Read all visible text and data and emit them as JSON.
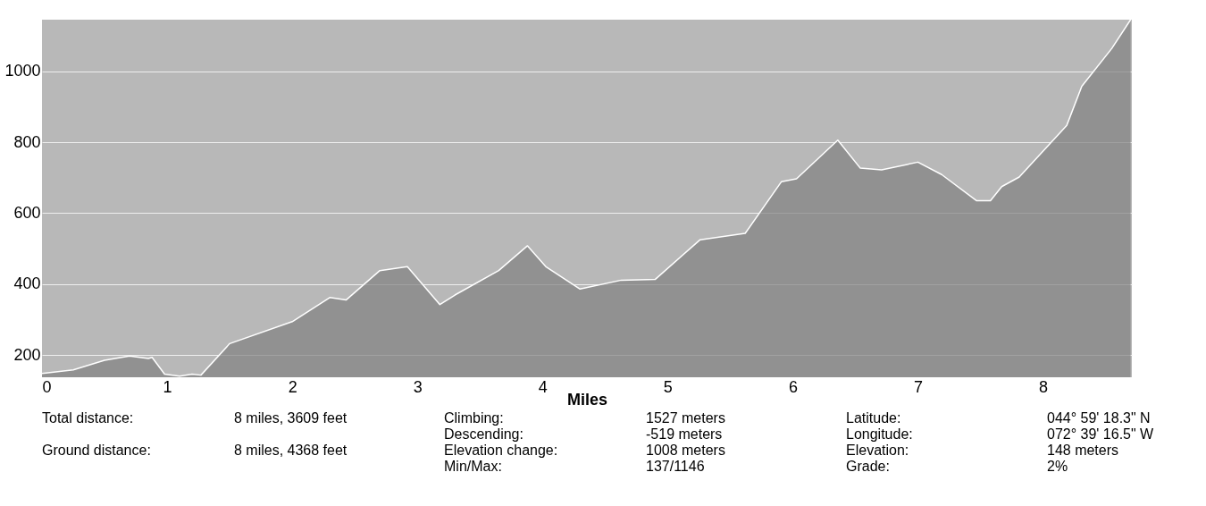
{
  "chart_data": {
    "type": "area",
    "xlabel": "Miles",
    "x": [
      0,
      0.25,
      0.5,
      0.7,
      0.85,
      0.88,
      0.98,
      1.1,
      1.2,
      1.27,
      1.5,
      2.0,
      2.3,
      2.43,
      2.7,
      2.92,
      3.18,
      3.3,
      3.65,
      3.88,
      4.03,
      4.3,
      4.63,
      4.9,
      5.26,
      5.62,
      5.91,
      6.03,
      6.36,
      6.54,
      6.71,
      7.0,
      7.19,
      7.47,
      7.58,
      7.67,
      7.81,
      8.19,
      8.31,
      8.55,
      8.7
    ],
    "series": [
      {
        "color": "#808080",
        "values": [
          148,
          158,
          185,
          197,
          190,
          193,
          146,
          140,
          146,
          143,
          232,
          294,
          362,
          355,
          438,
          449,
          342,
          369,
          438,
          508,
          448,
          386,
          411,
          413,
          525,
          543,
          689,
          697,
          806,
          727,
          722,
          744,
          709,
          635,
          635,
          675,
          702,
          848,
          958,
          1065,
          1146
        ]
      }
    ],
    "xlim": [
      0,
      8.71
    ],
    "xticks": [
      0,
      1,
      2,
      3,
      4,
      5,
      6,
      7,
      8
    ],
    "ylim": [
      137,
      1146
    ],
    "yticks": [
      200,
      400,
      600,
      800,
      1000
    ],
    "grid": "y",
    "annotations": [
      "Total distance:",
      "8 miles, 3609 feet",
      "Ground distance:",
      "8 miles, 4368 feet",
      "Climbing:",
      "1527 meters",
      "Descending:",
      "-519 meters",
      "Elevation change:",
      "1008 meters",
      "Min/Max:",
      "137/1146",
      "Latitude:",
      "044° 59' 18.3\" N",
      "Longitude:",
      "072° 39' 16.5\" W",
      "Elevation:",
      "148 meters",
      "Grade:",
      "2%"
    ]
  }
}
